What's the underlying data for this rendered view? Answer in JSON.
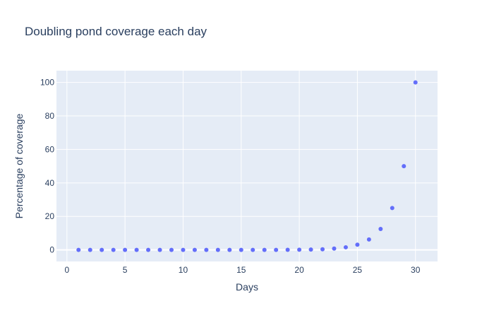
{
  "chart_data": {
    "type": "scatter",
    "title": "Doubling pond coverage each day",
    "xlabel": "Days",
    "ylabel": "Percentage of coverage",
    "x": [
      1,
      2,
      3,
      4,
      5,
      6,
      7,
      8,
      9,
      10,
      11,
      12,
      13,
      14,
      15,
      16,
      17,
      18,
      19,
      20,
      21,
      22,
      23,
      24,
      25,
      26,
      27,
      28,
      29,
      30
    ],
    "y": [
      1.863e-07,
      3.725e-07,
      7.45e-07,
      1.49e-06,
      2.98e-06,
      5.96e-06,
      1.19e-05,
      2.38e-05,
      4.77e-05,
      9.54e-05,
      0.000191,
      0.000381,
      0.000763,
      0.00153,
      0.00305,
      0.0061,
      0.0122,
      0.0244,
      0.0488,
      0.0977,
      0.195,
      0.391,
      0.781,
      1.5625,
      3.125,
      6.25,
      12.5,
      25,
      50,
      100
    ],
    "xlim": [
      -0.9,
      31.9
    ],
    "ylim": [
      -6.9,
      107
    ],
    "xticks": [
      0,
      5,
      10,
      15,
      20,
      25,
      30
    ],
    "yticks": [
      0,
      20,
      40,
      60,
      80,
      100
    ],
    "grid": true,
    "colors": {
      "marker": "#636efa",
      "plot_background": "#e5ecf6",
      "grid": "#ffffff",
      "text": "#2a3f5f"
    }
  }
}
